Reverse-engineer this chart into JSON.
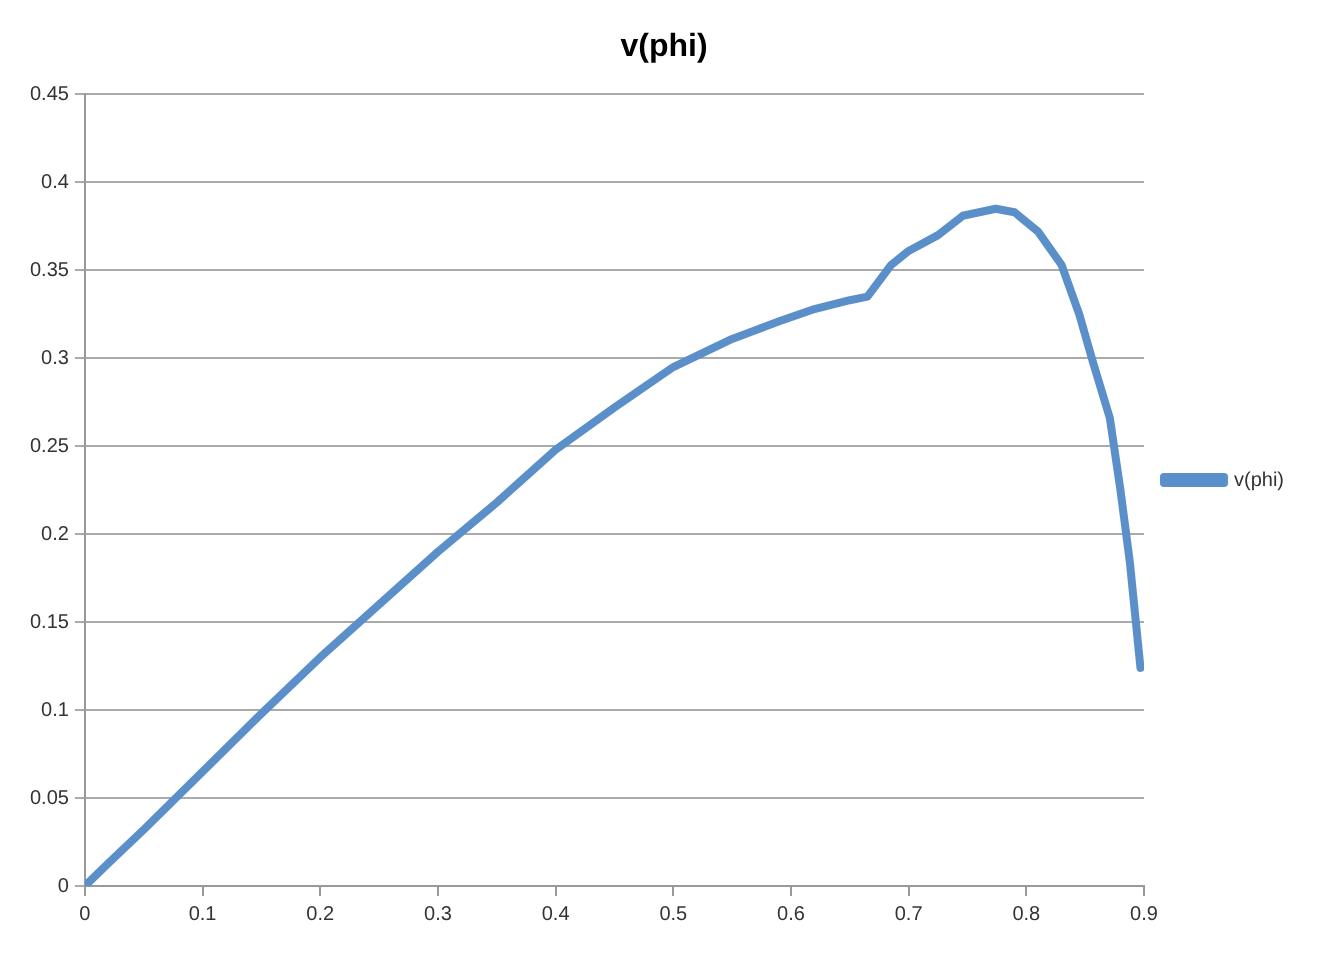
{
  "chart_data": {
    "type": "line",
    "title": "v(phi)",
    "x": [
      0,
      0.02,
      0.05,
      0.1,
      0.15,
      0.2,
      0.25,
      0.3,
      0.35,
      0.4,
      0.45,
      0.5,
      0.55,
      0.59,
      0.62,
      0.65,
      0.665,
      0.685,
      0.7,
      0.725,
      0.746,
      0.774,
      0.79,
      0.81,
      0.83,
      0.845,
      0.857,
      0.871,
      0.88,
      0.888,
      0.897
    ],
    "series": [
      {
        "name": "v(phi)",
        "color": "#5b8fc9",
        "values": [
          0,
          0.013,
          0.032,
          0.065,
          0.098,
          0.13,
          0.16,
          0.19,
          0.218,
          0.248,
          0.272,
          0.295,
          0.311,
          0.321,
          0.328,
          0.333,
          0.335,
          0.353,
          0.361,
          0.37,
          0.381,
          0.385,
          0.383,
          0.372,
          0.353,
          0.325,
          0.297,
          0.266,
          0.225,
          0.184,
          0.124
        ]
      }
    ],
    "xlim": [
      0,
      0.9
    ],
    "xticks": [
      0,
      0.1,
      0.2,
      0.3,
      0.4,
      0.5,
      0.6,
      0.7,
      0.8,
      0.9
    ],
    "ylim": [
      0,
      0.45
    ],
    "yticks": [
      0,
      0.05,
      0.1,
      0.15,
      0.2,
      0.25,
      0.3,
      0.35,
      0.4,
      0.45
    ],
    "grid": "y",
    "legend": "right",
    "marker": "none",
    "line_style": "solid"
  }
}
